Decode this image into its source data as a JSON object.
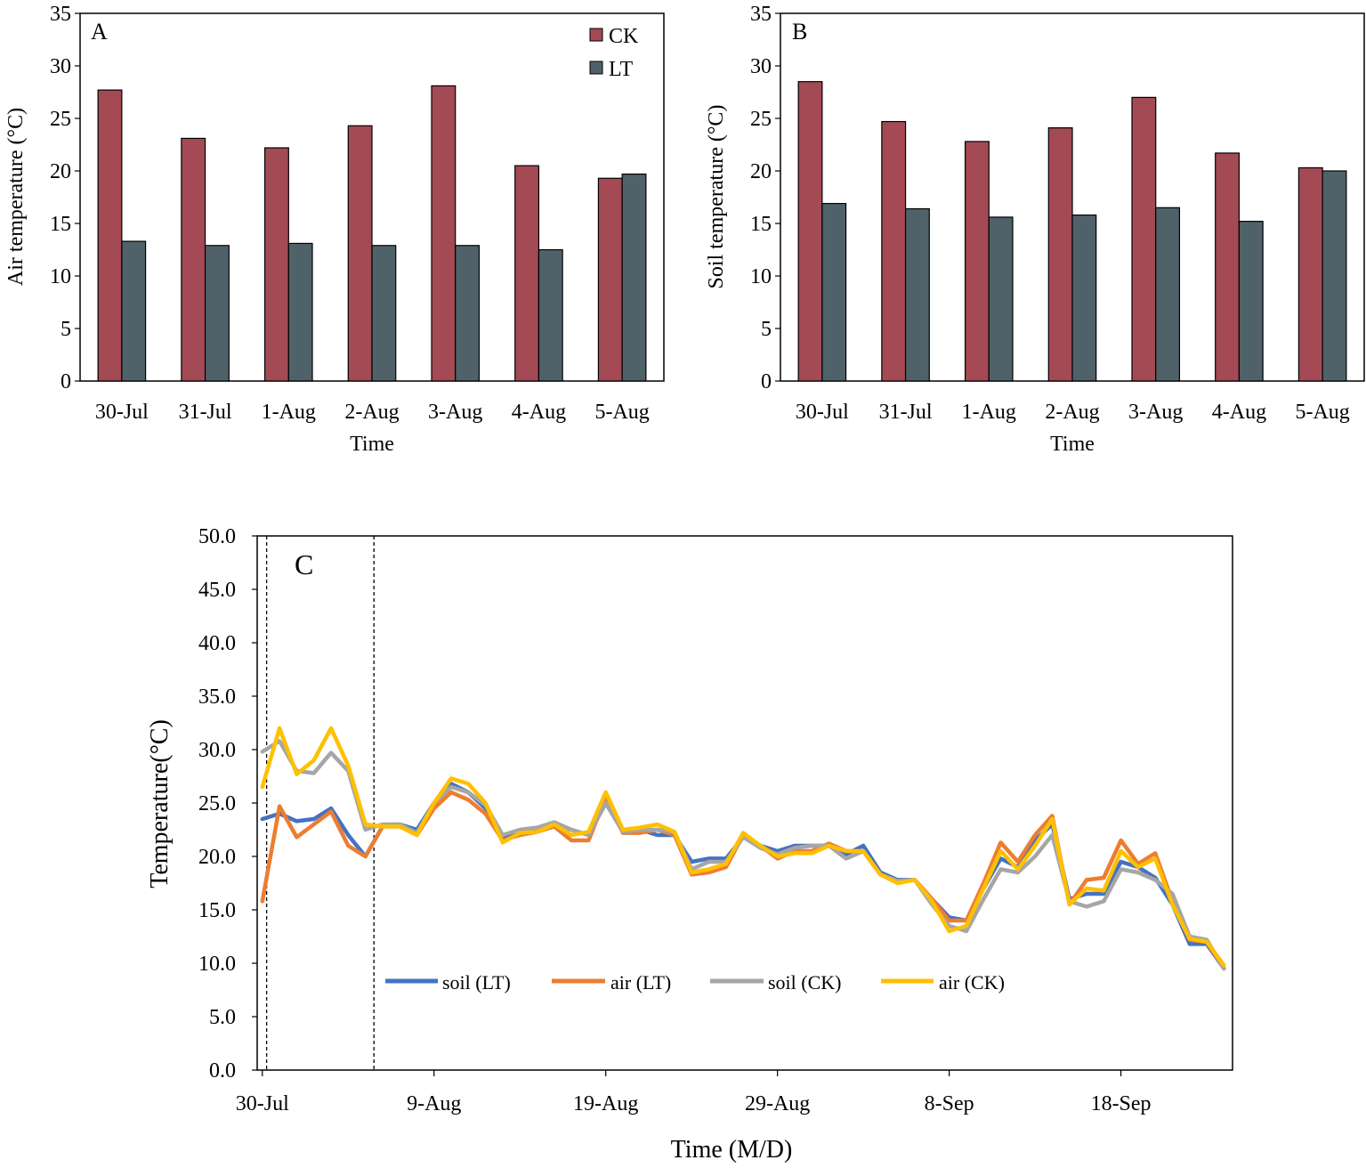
{
  "chart_data": [
    {
      "id": "A",
      "type": "bar",
      "panel_label": "A",
      "categories": [
        "30-Jul",
        "31-Jul",
        "1-Aug",
        "2-Aug",
        "3-Aug",
        "4-Aug",
        "5-Aug"
      ],
      "series": [
        {
          "name": "CK",
          "values": [
            27.7,
            23.1,
            22.2,
            24.3,
            28.1,
            20.5,
            19.3
          ],
          "color": "#a34a54"
        },
        {
          "name": "LT",
          "values": [
            13.3,
            12.9,
            13.1,
            12.9,
            12.9,
            12.5,
            19.7
          ],
          "color": "#4f6269"
        }
      ],
      "xlabel": "Time",
      "ylabel": "Air temperature (°C)",
      "ylim": [
        0,
        35
      ],
      "yticks": [
        "0",
        "5",
        "10",
        "15",
        "20",
        "25",
        "30",
        "35"
      ],
      "legend": "top-right"
    },
    {
      "id": "B",
      "type": "bar",
      "panel_label": "B",
      "categories": [
        "30-Jul",
        "31-Jul",
        "1-Aug",
        "2-Aug",
        "3-Aug",
        "4-Aug",
        "5-Aug"
      ],
      "series": [
        {
          "name": "CK",
          "values": [
            28.5,
            24.7,
            22.8,
            24.1,
            27.0,
            21.7,
            20.3
          ],
          "color": "#a34a54"
        },
        {
          "name": "LT",
          "values": [
            16.9,
            16.4,
            15.6,
            15.8,
            16.5,
            15.2,
            20.0
          ],
          "color": "#4f6269"
        }
      ],
      "xlabel": "Time",
      "ylabel": "Soil temperature (°C)",
      "ylim": [
        0,
        35
      ],
      "yticks": [
        "0",
        "5",
        "10",
        "15",
        "20",
        "25",
        "30",
        "35"
      ]
    },
    {
      "id": "C",
      "type": "line",
      "panel_label": "C",
      "x": [
        0,
        1,
        2,
        3,
        4,
        5,
        6,
        7,
        8,
        9,
        10,
        11,
        12,
        13,
        14,
        15,
        16,
        17,
        18,
        19,
        20,
        21,
        22,
        23,
        24,
        25,
        26,
        27,
        28,
        29,
        30,
        31,
        32,
        33,
        34,
        35,
        36,
        37,
        38,
        39,
        40,
        41,
        42,
        43,
        44,
        45,
        46,
        47,
        48,
        49,
        50,
        51,
        52,
        53,
        54,
        55,
        56
      ],
      "xlim": [
        -0.3,
        56.5
      ],
      "xticks": [
        {
          "value": 0,
          "label": "30-Jul"
        },
        {
          "value": 10,
          "label": "9-Aug"
        },
        {
          "value": 20,
          "label": "19-Aug"
        },
        {
          "value": 30,
          "label": "29-Aug"
        },
        {
          "value": 40,
          "label": "8-Sep"
        },
        {
          "value": 50,
          "label": "18-Sep"
        }
      ],
      "ylim": [
        0,
        50
      ],
      "yticks": [
        "0.0",
        "5.0",
        "10.0",
        "15.0",
        "20.0",
        "25.0",
        "30.0",
        "35.0",
        "40.0",
        "45.0",
        "50.0"
      ],
      "vlines": [
        0.25,
        6.5
      ],
      "series": [
        {
          "name": "soil (LT)",
          "color": "#4472c4",
          "values": [
            23.5,
            24.0,
            23.3,
            23.5,
            24.5,
            22.0,
            20.0,
            22.8,
            23.0,
            22.5,
            25.0,
            26.8,
            26.0,
            24.5,
            21.8,
            22.3,
            22.5,
            23.0,
            22.5,
            22.0,
            25.0,
            22.3,
            22.5,
            22.0,
            22.0,
            19.5,
            19.8,
            19.8,
            21.8,
            21.0,
            20.5,
            21.0,
            21.0,
            21.0,
            20.2,
            21.0,
            18.5,
            17.8,
            17.8,
            16.0,
            14.3,
            14.0,
            17.0,
            19.8,
            19.0,
            21.5,
            23.0,
            16.0,
            16.5,
            16.5,
            19.5,
            19.0,
            18.0,
            15.5,
            11.8,
            11.8,
            9.5
          ]
        },
        {
          "name": "air (LT)",
          "color": "#ed7d31",
          "values": [
            15.8,
            24.7,
            21.8,
            23.0,
            24.2,
            21.0,
            20.0,
            22.8,
            22.8,
            22.0,
            24.5,
            26.0,
            25.3,
            24.0,
            21.5,
            22.0,
            22.3,
            22.8,
            21.5,
            21.5,
            25.5,
            22.2,
            22.2,
            22.5,
            22.0,
            18.3,
            18.5,
            19.0,
            22.0,
            21.0,
            19.8,
            20.5,
            20.5,
            21.2,
            20.5,
            20.5,
            18.3,
            17.7,
            17.8,
            16.0,
            14.0,
            14.0,
            17.5,
            21.3,
            19.5,
            22.0,
            23.8,
            15.5,
            17.8,
            18.0,
            21.5,
            19.3,
            20.3,
            15.8,
            12.2,
            12.0,
            9.5
          ]
        },
        {
          "name": "soil (CK)",
          "color": "#a6a6a6",
          "values": [
            29.8,
            30.8,
            28.0,
            27.8,
            29.7,
            28.0,
            22.5,
            23.0,
            23.0,
            22.2,
            25.0,
            26.5,
            26.0,
            24.8,
            22.0,
            22.5,
            22.7,
            23.2,
            22.5,
            22.0,
            25.0,
            22.3,
            22.5,
            22.5,
            22.3,
            18.8,
            19.5,
            19.5,
            21.8,
            20.8,
            20.2,
            20.8,
            21.0,
            21.0,
            19.8,
            20.5,
            18.3,
            17.7,
            17.8,
            15.5,
            13.5,
            13.0,
            16.0,
            18.8,
            18.5,
            20.0,
            22.0,
            15.8,
            15.3,
            15.8,
            18.8,
            18.5,
            17.8,
            16.5,
            12.5,
            12.2,
            9.5
          ]
        },
        {
          "name": "air (CK)",
          "color": "#ffc000",
          "values": [
            26.5,
            32.0,
            27.7,
            29.0,
            32.0,
            28.5,
            23.0,
            22.8,
            22.8,
            22.0,
            25.0,
            27.3,
            26.8,
            25.0,
            21.3,
            22.2,
            22.3,
            23.0,
            22.0,
            22.3,
            26.0,
            22.5,
            22.7,
            23.0,
            22.3,
            18.5,
            18.8,
            19.3,
            22.2,
            21.0,
            20.0,
            20.3,
            20.3,
            21.0,
            20.5,
            20.5,
            18.3,
            17.5,
            17.8,
            15.8,
            13.0,
            13.5,
            17.0,
            20.5,
            18.8,
            21.0,
            23.5,
            15.5,
            17.0,
            16.8,
            20.5,
            19.0,
            19.8,
            15.5,
            12.3,
            12.0,
            9.8
          ]
        }
      ],
      "xlabel": "Time (M/D)",
      "ylabel": "Temperature(°C)",
      "legend": "inside-bottom-left"
    }
  ]
}
